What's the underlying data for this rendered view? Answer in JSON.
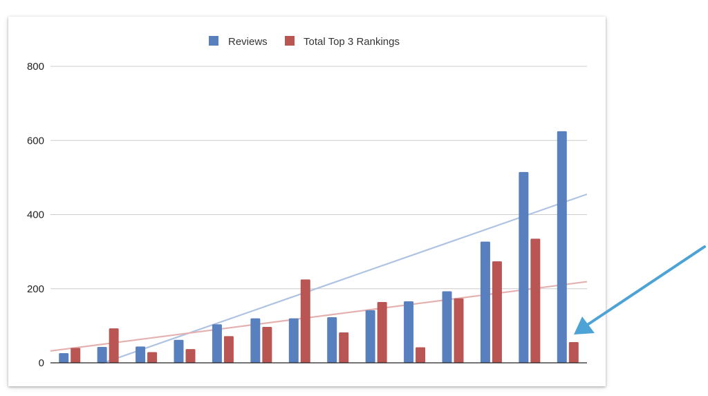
{
  "chart_data": {
    "type": "bar",
    "legend_position": "top-center",
    "grid": true,
    "ylim": [
      0,
      800
    ],
    "yticks": [
      "0",
      "200",
      "400",
      "600",
      "800"
    ],
    "categories": [
      "",
      "",
      "",
      "",
      "",
      "",
      "",
      "",
      "",
      "",
      "",
      "",
      "",
      ""
    ],
    "series": [
      {
        "name": "Reviews",
        "color": "#5880be",
        "values": [
          26,
          43,
          44,
          62,
          104,
          120,
          120,
          123,
          142,
          166,
          193,
          327,
          515,
          625
        ]
      },
      {
        "name": "Total Top 3 Rankings",
        "color": "#b95553",
        "values": [
          40,
          93,
          29,
          37,
          72,
          97,
          225,
          82,
          164,
          42,
          174,
          274,
          335,
          56
        ]
      }
    ],
    "trendlines": [
      {
        "series": "Reviews",
        "color": "#aec3e2",
        "start": -50,
        "end": 455
      },
      {
        "series": "Total Top 3 Rankings",
        "color": "#e4b1b0",
        "start": 32,
        "end": 219
      }
    ]
  },
  "annotation": {
    "type": "arrow",
    "color": "#4da2d6",
    "points_to_category_index": 13
  }
}
